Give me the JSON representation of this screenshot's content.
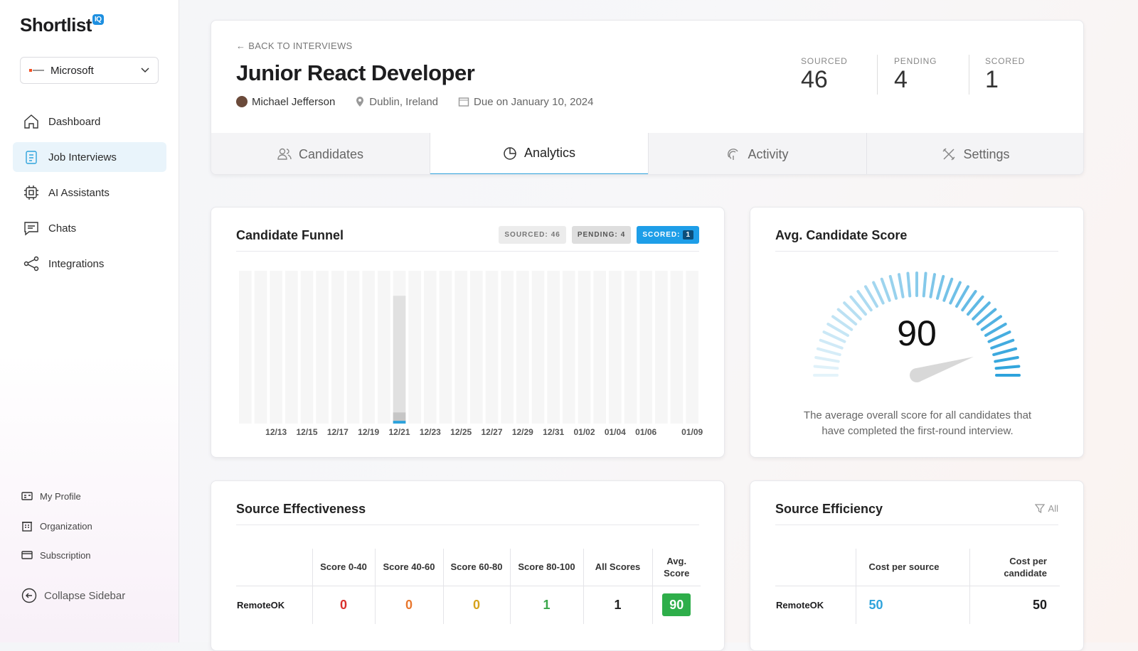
{
  "sidebar": {
    "logo": "Shortlist",
    "badge": "IQ",
    "org": "Microsoft",
    "nav": [
      "Dashboard",
      "Job Interviews",
      "AI Assistants",
      "Chats",
      "Integrations"
    ],
    "footer": [
      "My Profile",
      "Organization",
      "Subscription"
    ],
    "collapse": "Collapse Sidebar"
  },
  "header": {
    "back": "BACK TO INTERVIEWS",
    "title": "Junior React Developer",
    "person": "Michael Jefferson",
    "location": "Dublin, Ireland",
    "due": "Due on January 10, 2024",
    "stats": [
      {
        "label": "SOURCED",
        "value": 46
      },
      {
        "label": "PENDING",
        "value": 4
      },
      {
        "label": "SCORED",
        "value": 1
      }
    ]
  },
  "tabs": [
    "Candidates",
    "Analytics",
    "Activity",
    "Settings"
  ],
  "chart_data": [
    {
      "type": "bar",
      "title": "Candidate Funnel",
      "ylim": [
        0,
        55
      ],
      "categories": [
        null,
        null,
        "12/13",
        null,
        "12/15",
        null,
        "12/17",
        null,
        "12/19",
        null,
        "12/21",
        null,
        "12/23",
        null,
        "12/25",
        null,
        "12/27",
        null,
        "12/29",
        null,
        "12/31",
        null,
        "01/02",
        null,
        "01/04",
        null,
        "01/06",
        null,
        null,
        "01/09"
      ],
      "series": [
        {
          "name": "SOURCED:",
          "total": 46,
          "color": "#e1e1e1",
          "values": [
            0,
            0,
            0,
            0,
            0,
            0,
            0,
            0,
            0,
            0,
            46,
            0,
            0,
            0,
            0,
            0,
            0,
            0,
            0,
            0,
            0,
            0,
            0,
            0,
            0,
            0,
            0,
            0,
            0,
            0
          ]
        },
        {
          "name": "PENDING:",
          "total": 4,
          "color": "#c6c6c6",
          "values": [
            0,
            0,
            0,
            0,
            0,
            0,
            0,
            0,
            0,
            0,
            4,
            0,
            0,
            0,
            0,
            0,
            0,
            0,
            0,
            0,
            0,
            0,
            0,
            0,
            0,
            0,
            0,
            0,
            0,
            0
          ]
        },
        {
          "name": "SCORED:",
          "total": 1,
          "color": "#2ea3dc",
          "values": [
            0,
            0,
            0,
            0,
            0,
            0,
            0,
            0,
            0,
            0,
            1,
            0,
            0,
            0,
            0,
            0,
            0,
            0,
            0,
            0,
            0,
            0,
            0,
            0,
            0,
            0,
            0,
            0,
            0,
            0
          ]
        }
      ]
    },
    {
      "type": "gauge",
      "title": "Avg. Candidate Score",
      "value": 90,
      "ylim": [
        0,
        100
      ],
      "color": "#2ea3dc",
      "description": "The average overall score for all candidates that have completed the first-round interview."
    }
  ],
  "effectiveness": {
    "title": "Source Effectiveness",
    "headers": [
      "Score 0-40",
      "Score 40-60",
      "Score 60-80",
      "Score 80-100",
      "All Scores",
      "Avg. Score"
    ],
    "rows": [
      {
        "source": "RemoteOK",
        "values": [
          0,
          0,
          0,
          1,
          1,
          90
        ]
      }
    ]
  },
  "efficiency": {
    "title": "Source Efficiency",
    "filter": "All",
    "headers": [
      "Cost per source",
      "Cost per candidate"
    ],
    "rows": [
      {
        "source": "RemoteOK",
        "values": [
          50,
          50
        ]
      }
    ]
  }
}
